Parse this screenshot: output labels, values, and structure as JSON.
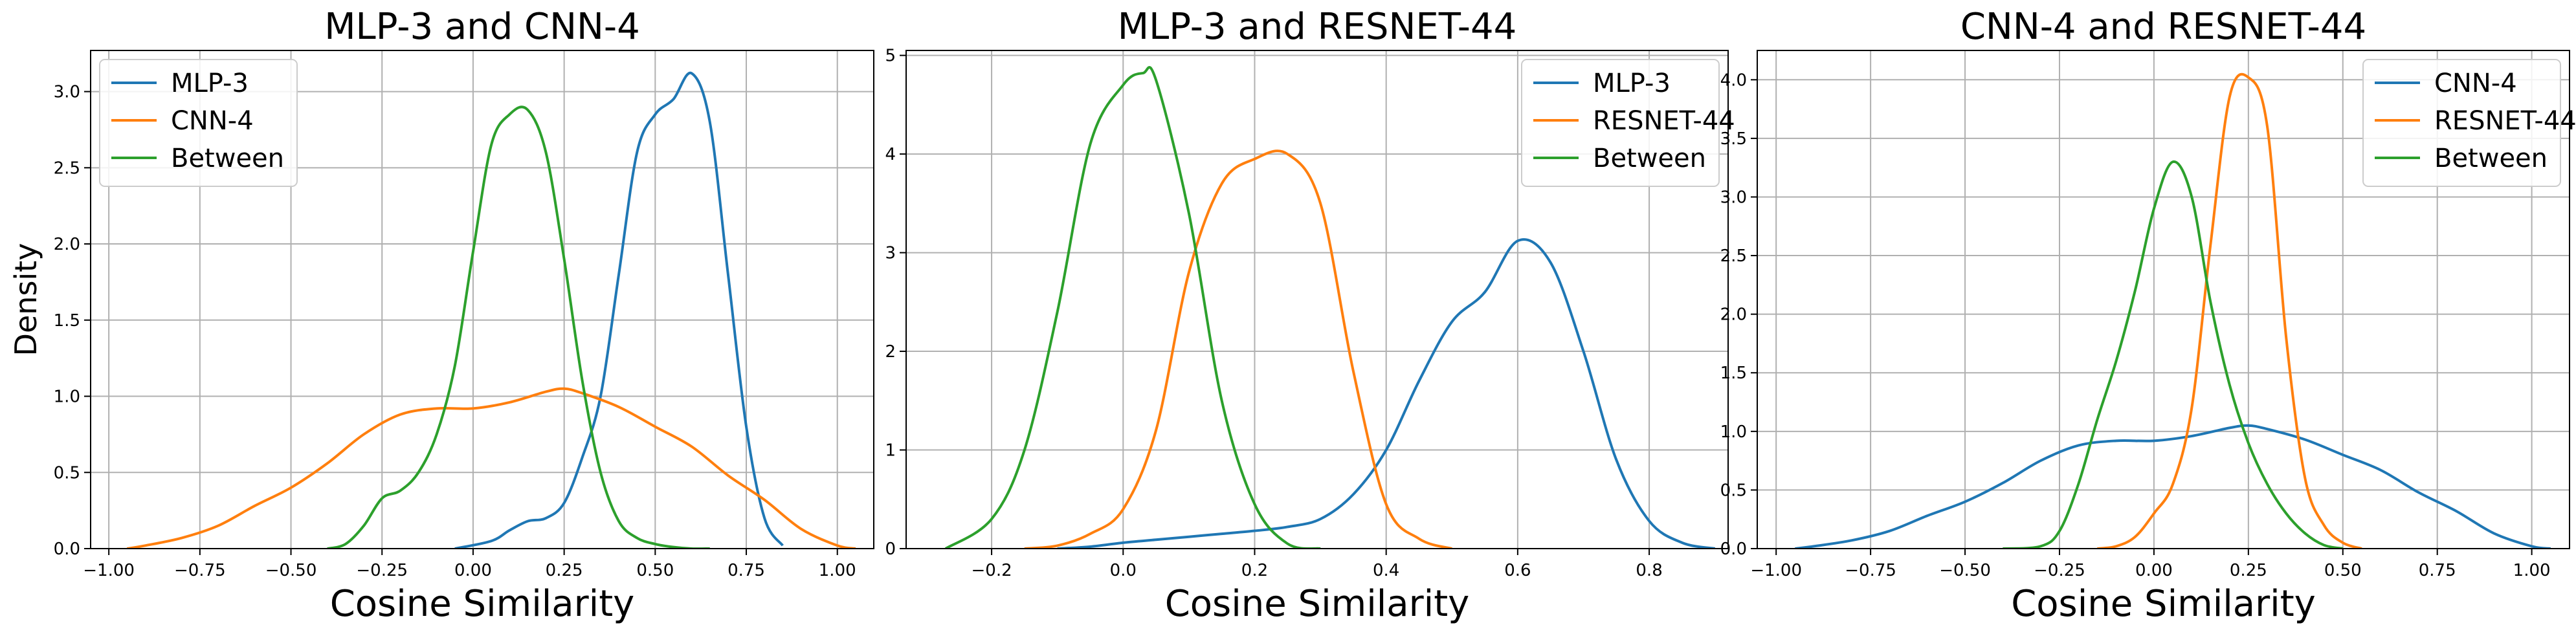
{
  "figure": {
    "panels": 3
  },
  "chart_data": [
    {
      "type": "line",
      "title": "MLP-3 and CNN-4",
      "xlabel": "Cosine Similarity",
      "ylabel": "Density",
      "xlim": [
        -1.05,
        1.1
      ],
      "ylim": [
        0,
        3.27
      ],
      "xticks": [
        -1.0,
        -0.75,
        -0.5,
        -0.25,
        0.0,
        0.25,
        0.5,
        0.75,
        1.0
      ],
      "xtick_labels": [
        "−1.00",
        "−0.75",
        "−0.50",
        "−0.25",
        "0.00",
        "0.25",
        "0.50",
        "0.75",
        "1.00"
      ],
      "yticks": [
        0.0,
        0.5,
        1.0,
        1.5,
        2.0,
        2.5,
        3.0
      ],
      "ytick_labels": [
        "0.0",
        "0.5",
        "1.0",
        "1.5",
        "2.0",
        "2.5",
        "3.0"
      ],
      "grid": true,
      "legend_position": "top-left",
      "series": [
        {
          "name": "MLP-3",
          "color": "#1f77b4",
          "x": [
            -0.05,
            0.05,
            0.1,
            0.15,
            0.2,
            0.25,
            0.3,
            0.35,
            0.4,
            0.45,
            0.5,
            0.55,
            0.6,
            0.65,
            0.7,
            0.75,
            0.8,
            0.85
          ],
          "y": [
            0.0,
            0.05,
            0.12,
            0.18,
            0.2,
            0.3,
            0.6,
            1.0,
            1.8,
            2.6,
            2.85,
            2.95,
            3.12,
            2.8,
            1.8,
            0.8,
            0.2,
            0.02
          ]
        },
        {
          "name": "CNN-4",
          "color": "#ff7f0e",
          "x": [
            -0.95,
            -0.9,
            -0.8,
            -0.7,
            -0.6,
            -0.5,
            -0.4,
            -0.3,
            -0.2,
            -0.1,
            0.0,
            0.1,
            0.2,
            0.25,
            0.3,
            0.4,
            0.5,
            0.6,
            0.7,
            0.8,
            0.9,
            1.0,
            1.05
          ],
          "y": [
            0.0,
            0.02,
            0.07,
            0.15,
            0.28,
            0.4,
            0.56,
            0.75,
            0.88,
            0.92,
            0.92,
            0.96,
            1.03,
            1.05,
            1.02,
            0.93,
            0.8,
            0.67,
            0.48,
            0.32,
            0.13,
            0.02,
            0.0
          ]
        },
        {
          "name": "Between",
          "color": "#2ca02c",
          "x": [
            -0.4,
            -0.35,
            -0.3,
            -0.25,
            -0.2,
            -0.15,
            -0.1,
            -0.05,
            0.0,
            0.05,
            0.1,
            0.15,
            0.2,
            0.25,
            0.3,
            0.35,
            0.4,
            0.45,
            0.5,
            0.55,
            0.6,
            0.65
          ],
          "y": [
            0.0,
            0.03,
            0.15,
            0.33,
            0.38,
            0.5,
            0.75,
            1.2,
            1.95,
            2.65,
            2.85,
            2.88,
            2.6,
            1.9,
            1.1,
            0.5,
            0.18,
            0.07,
            0.03,
            0.01,
            0.0,
            0.0
          ]
        }
      ]
    },
    {
      "type": "line",
      "title": "MLP-3 and RESNET-44",
      "xlabel": "Cosine Similarity",
      "ylabel": "",
      "xlim": [
        -0.33,
        0.92
      ],
      "ylim": [
        0,
        5.05
      ],
      "xticks": [
        -0.2,
        0.0,
        0.2,
        0.4,
        0.6,
        0.8
      ],
      "xtick_labels": [
        "−0.2",
        "0.0",
        "0.2",
        "0.4",
        "0.6",
        "0.8"
      ],
      "yticks": [
        0,
        1,
        2,
        3,
        4,
        5
      ],
      "ytick_labels": [
        "0",
        "1",
        "2",
        "3",
        "4",
        "5"
      ],
      "grid": true,
      "legend_position": "top-right",
      "series": [
        {
          "name": "MLP-3",
          "color": "#1f77b4",
          "x": [
            -0.1,
            -0.05,
            0.0,
            0.05,
            0.1,
            0.15,
            0.2,
            0.25,
            0.3,
            0.35,
            0.4,
            0.45,
            0.5,
            0.55,
            0.6,
            0.65,
            0.7,
            0.75,
            0.8,
            0.85,
            0.9
          ],
          "y": [
            0.0,
            0.02,
            0.06,
            0.09,
            0.12,
            0.15,
            0.18,
            0.22,
            0.3,
            0.55,
            1.0,
            1.7,
            2.3,
            2.6,
            3.12,
            2.9,
            2.0,
            0.9,
            0.28,
            0.06,
            0.0
          ]
        },
        {
          "name": "RESNET-44",
          "color": "#ff7f0e",
          "x": [
            -0.15,
            -0.1,
            -0.05,
            0.0,
            0.05,
            0.1,
            0.15,
            0.2,
            0.25,
            0.3,
            0.35,
            0.4,
            0.45,
            0.5
          ],
          "y": [
            0.0,
            0.03,
            0.15,
            0.4,
            1.2,
            2.8,
            3.7,
            3.95,
            4.0,
            3.5,
            1.8,
            0.45,
            0.1,
            0.0
          ]
        },
        {
          "name": "Between",
          "color": "#2ca02c",
          "x": [
            -0.27,
            -0.2,
            -0.15,
            -0.1,
            -0.05,
            0.0,
            0.03,
            0.05,
            0.1,
            0.15,
            0.2,
            0.25,
            0.3
          ],
          "y": [
            0.0,
            0.3,
            1.0,
            2.4,
            4.1,
            4.7,
            4.82,
            4.75,
            3.4,
            1.5,
            0.45,
            0.05,
            0.0
          ]
        }
      ]
    },
    {
      "type": "line",
      "title": "CNN-4 and RESNET-44",
      "xlabel": "Cosine Similarity",
      "ylabel": "",
      "xlim": [
        -1.05,
        1.1
      ],
      "ylim": [
        0,
        4.25
      ],
      "xticks": [
        -1.0,
        -0.75,
        -0.5,
        -0.25,
        0.0,
        0.25,
        0.5,
        0.75,
        1.0
      ],
      "xtick_labels": [
        "−1.00",
        "−0.75",
        "−0.50",
        "−0.25",
        "0.00",
        "0.25",
        "0.50",
        "0.75",
        "1.00"
      ],
      "yticks": [
        0.0,
        0.5,
        1.0,
        1.5,
        2.0,
        2.5,
        3.0,
        3.5,
        4.0
      ],
      "ytick_labels": [
        "0.0",
        "0.5",
        "1.0",
        "1.5",
        "2.0",
        "2.5",
        "3.0",
        "3.5",
        "4.0"
      ],
      "grid": true,
      "legend_position": "top-right",
      "series": [
        {
          "name": "CNN-4",
          "color": "#1f77b4",
          "x": [
            -0.95,
            -0.9,
            -0.8,
            -0.7,
            -0.6,
            -0.5,
            -0.4,
            -0.3,
            -0.2,
            -0.1,
            0.0,
            0.1,
            0.2,
            0.25,
            0.3,
            0.4,
            0.5,
            0.6,
            0.7,
            0.8,
            0.9,
            1.0,
            1.05
          ],
          "y": [
            0.0,
            0.02,
            0.07,
            0.15,
            0.28,
            0.4,
            0.56,
            0.75,
            0.88,
            0.92,
            0.92,
            0.96,
            1.03,
            1.05,
            1.02,
            0.93,
            0.8,
            0.67,
            0.48,
            0.32,
            0.13,
            0.02,
            0.0
          ]
        },
        {
          "name": "RESNET-44",
          "color": "#ff7f0e",
          "x": [
            -0.15,
            -0.1,
            -0.05,
            0.0,
            0.05,
            0.1,
            0.15,
            0.2,
            0.25,
            0.3,
            0.35,
            0.4,
            0.45,
            0.5,
            0.55
          ],
          "y": [
            0.0,
            0.02,
            0.1,
            0.3,
            0.55,
            1.2,
            2.6,
            3.85,
            4.02,
            3.6,
            1.8,
            0.6,
            0.2,
            0.05,
            0.0
          ]
        },
        {
          "name": "Between",
          "color": "#2ca02c",
          "x": [
            -0.4,
            -0.3,
            -0.25,
            -0.2,
            -0.15,
            -0.1,
            -0.05,
            0.0,
            0.05,
            0.1,
            0.15,
            0.2,
            0.25,
            0.3,
            0.35,
            0.4,
            0.45,
            0.5
          ],
          "y": [
            0.0,
            0.02,
            0.15,
            0.55,
            1.1,
            1.6,
            2.2,
            2.9,
            3.3,
            3.0,
            2.1,
            1.4,
            0.9,
            0.55,
            0.3,
            0.13,
            0.03,
            0.0
          ]
        }
      ]
    }
  ]
}
